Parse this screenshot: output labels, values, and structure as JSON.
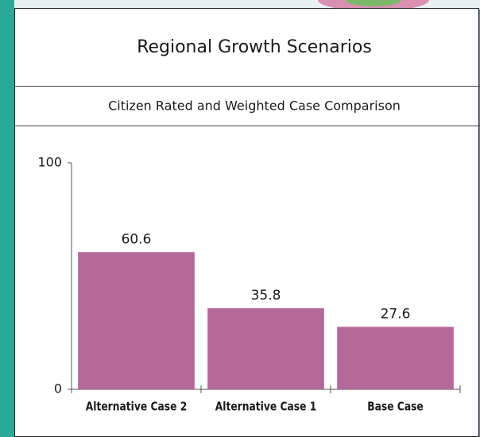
{
  "chart_data": {
    "type": "bar",
    "title": "Regional Growth Scenarios",
    "subtitle": "Citizen Rated and Weighted Case Comparison",
    "categories": [
      "Alternative Case 2",
      "Alternative Case 1",
      "Base Case"
    ],
    "values": [
      60.6,
      35.8,
      27.6
    ],
    "color": "#b5699a",
    "ylim": [
      0,
      100
    ],
    "yticks": [
      0,
      100
    ]
  }
}
